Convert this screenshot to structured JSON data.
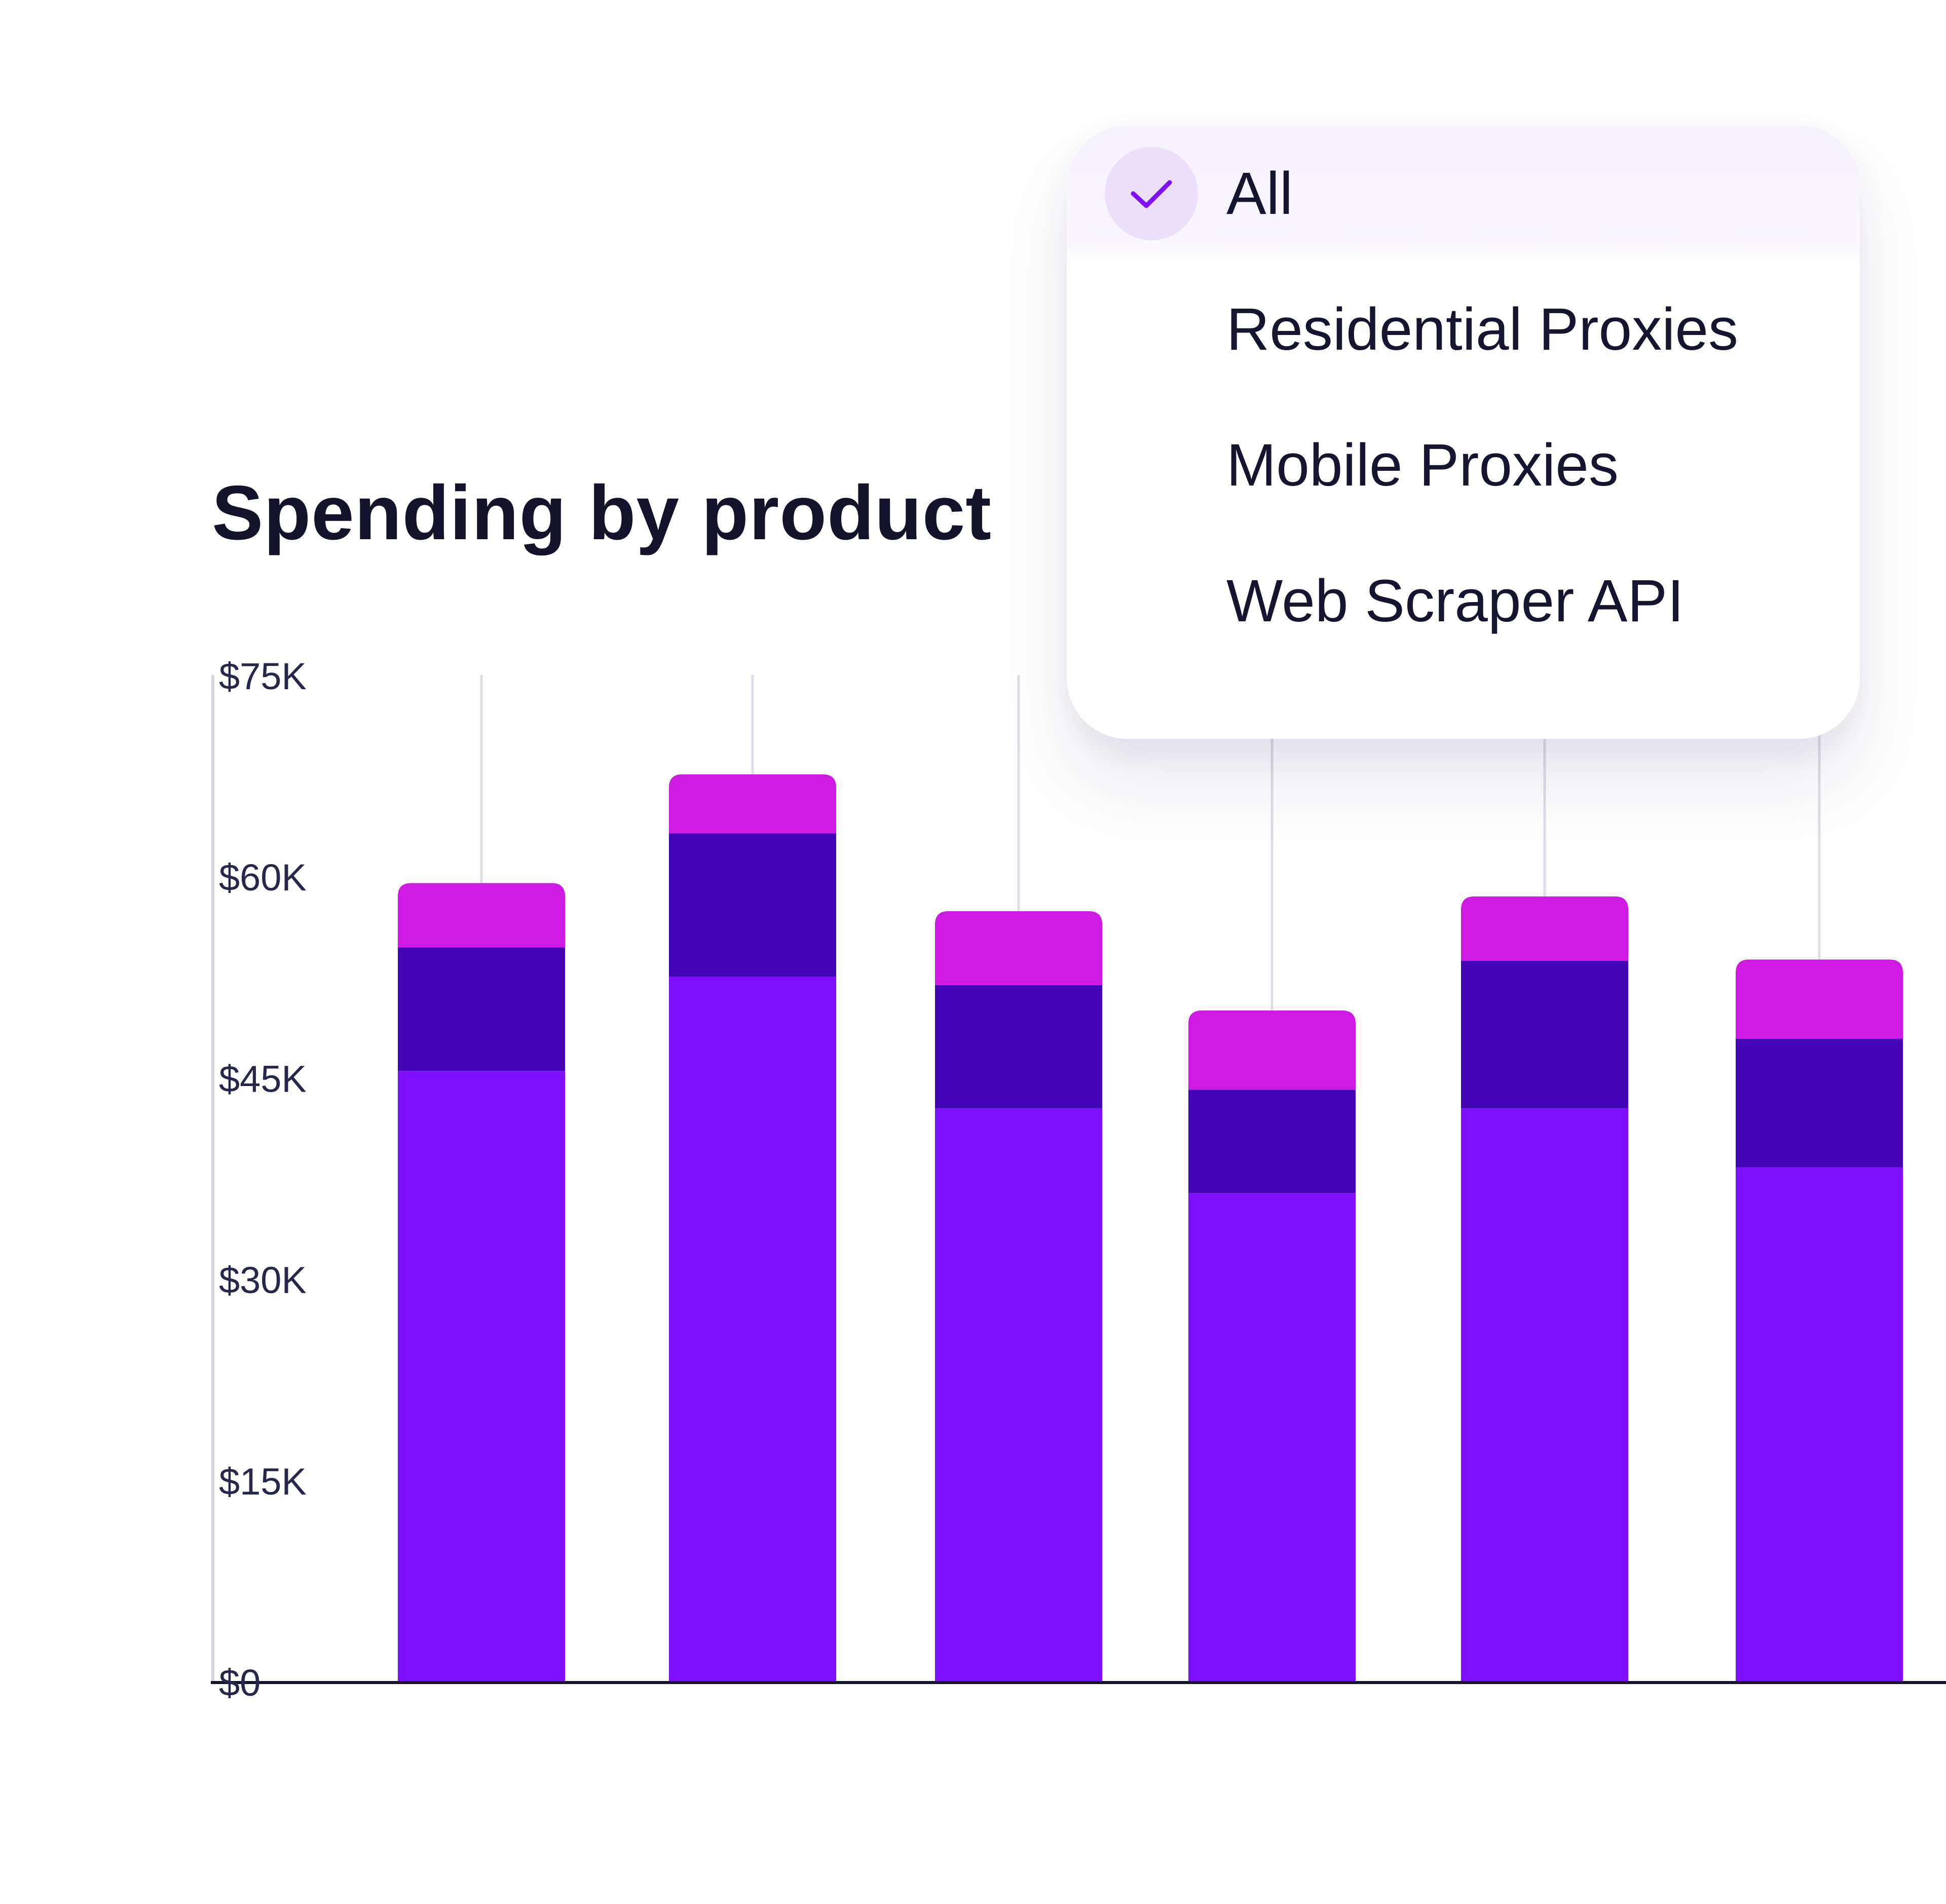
{
  "title": "Spending by product",
  "dropdown": {
    "items": [
      {
        "label": "All",
        "selected": true
      },
      {
        "label": "Residential Proxies",
        "selected": false
      },
      {
        "label": "Mobile Proxies",
        "selected": false
      },
      {
        "label": "Web Scraper API",
        "selected": false
      }
    ],
    "check_icon": "checkmark-icon"
  },
  "chart_data": {
    "type": "bar",
    "stacked": true,
    "title": "Spending by product",
    "xlabel": "",
    "ylabel": "",
    "ylim": [
      0,
      75000
    ],
    "y_ticks": [
      {
        "value": 0,
        "label": "$0"
      },
      {
        "value": 15000,
        "label": "$15K"
      },
      {
        "value": 30000,
        "label": "$30K"
      },
      {
        "value": 45000,
        "label": "$45K"
      },
      {
        "value": 60000,
        "label": "$60K"
      },
      {
        "value": 75000,
        "label": "$75K"
      }
    ],
    "categories": [
      "",
      "",
      "",
      "",
      "",
      ""
    ],
    "series": [
      {
        "color": "#7f10fe",
        "values": [
          45500,
          52500,
          42700,
          36400,
          42700,
          38300
        ]
      },
      {
        "color": "#4405b6",
        "values": [
          9200,
          10700,
          9200,
          7700,
          11000,
          9600
        ]
      },
      {
        "color": "#ce1ae2",
        "values": [
          4800,
          4400,
          5500,
          5900,
          4800,
          5900
        ]
      }
    ],
    "grid": false,
    "legend": "none",
    "colors": {
      "axis": "#14142b",
      "y_axis": "#d5d3de",
      "leader": "#dedde5",
      "tick_text": "#27274a"
    }
  }
}
